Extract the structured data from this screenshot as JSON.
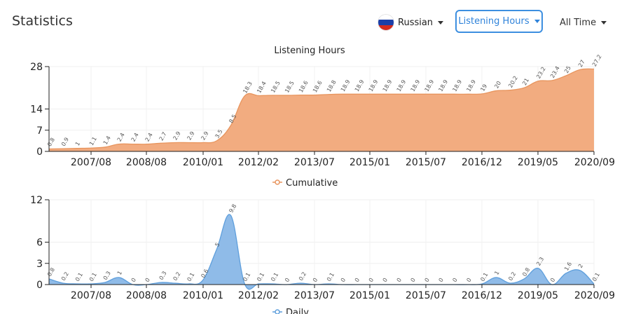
{
  "header": {
    "title": "Statistics",
    "language": {
      "label": "Russian",
      "flag": "russia-flag-icon"
    },
    "metric": {
      "label": "Listening Hours"
    },
    "range": {
      "label": "All Time"
    }
  },
  "colors": {
    "accent": "#3d8fe0",
    "cumulative_fill": "#f2ac80",
    "cumulative_line": "#e8955e",
    "daily_fill": "#8fbbe8",
    "daily_line": "#5f9fdc"
  },
  "chart_data": [
    {
      "type": "area",
      "title": "Listening Hours",
      "legend": {
        "label": "Cumulative",
        "placement": "bottom"
      },
      "x_ticks": [
        "2007/08",
        "2008/08",
        "2010/01",
        "2012/02",
        "2013/07",
        "2015/01",
        "2015/07",
        "2016/12",
        "2019/05",
        "2020/09"
      ],
      "y_ticks": [
        0,
        7,
        14,
        28
      ],
      "ylim": [
        0,
        28
      ],
      "grid": true,
      "series": [
        {
          "name": "Cumulative",
          "values": [
            0.8,
            0.9,
            1,
            1.1,
            1.4,
            2.4,
            2.4,
            2.4,
            2.7,
            2.9,
            2.9,
            2.9,
            3.5,
            8.5,
            18.3,
            18.4,
            18.5,
            18.5,
            18.6,
            18.6,
            18.8,
            18.9,
            18.9,
            18.9,
            18.9,
            18.9,
            18.9,
            18.9,
            18.9,
            18.9,
            18.9,
            19,
            20,
            20.2,
            21,
            23.2,
            23.4,
            25,
            27,
            27.2
          ],
          "labels": [
            "0.8",
            "0.9",
            "1",
            "1.1",
            "1.4",
            "2.4",
            "2.4",
            "2.4",
            "2.7",
            "2.9",
            "2.9",
            "2.9",
            "3.5",
            "8.5",
            "18.3",
            "18.4",
            "18.5",
            "18.5",
            "18.6",
            "18.6",
            "18.8",
            "18.9",
            "18.9",
            "18.9",
            "18.9",
            "18.9",
            "18.9",
            "18.9",
            "18.9",
            "18.9",
            "18.9",
            "19",
            "20",
            "20.2",
            "21",
            "23.2",
            "23.4",
            "25",
            "27",
            "27.2"
          ]
        }
      ]
    },
    {
      "type": "area",
      "title": "",
      "legend": {
        "label": "Daily",
        "placement": "bottom"
      },
      "x_ticks": [
        "2007/08",
        "2008/08",
        "2010/01",
        "2012/02",
        "2013/07",
        "2015/01",
        "2015/07",
        "2016/12",
        "2019/05",
        "2020/09"
      ],
      "y_ticks": [
        0,
        3,
        6,
        12
      ],
      "ylim": [
        0,
        12
      ],
      "grid": true,
      "series": [
        {
          "name": "Daily",
          "values": [
            0.8,
            0.2,
            0.1,
            0.1,
            0.3,
            1,
            0,
            0,
            0.3,
            0.2,
            0.1,
            0.6,
            5,
            9.8,
            0.1,
            0.1,
            0.1,
            0,
            0.2,
            0,
            0.1,
            0,
            0,
            0,
            0,
            0,
            0,
            0,
            0,
            0,
            0,
            0.1,
            1,
            0.2,
            0.8,
            2.3,
            0,
            1.6,
            2,
            0.1
          ],
          "labels": [
            "0.8",
            "0.2",
            "0.1",
            "0.1",
            "0.3",
            "1",
            "0",
            "0",
            "0.3",
            "0.2",
            "0.1",
            "0.6",
            "5",
            "9.8",
            "0.1",
            "0.1",
            "0.1",
            "0",
            "0.2",
            "0",
            "0.1",
            "0",
            "0",
            "0",
            "0",
            "0",
            "0",
            "0",
            "0",
            "0",
            "0",
            "0.1",
            "1",
            "0.2",
            "0.8",
            "2.3",
            "0",
            "1.6",
            "2",
            "0.1"
          ]
        }
      ]
    }
  ]
}
